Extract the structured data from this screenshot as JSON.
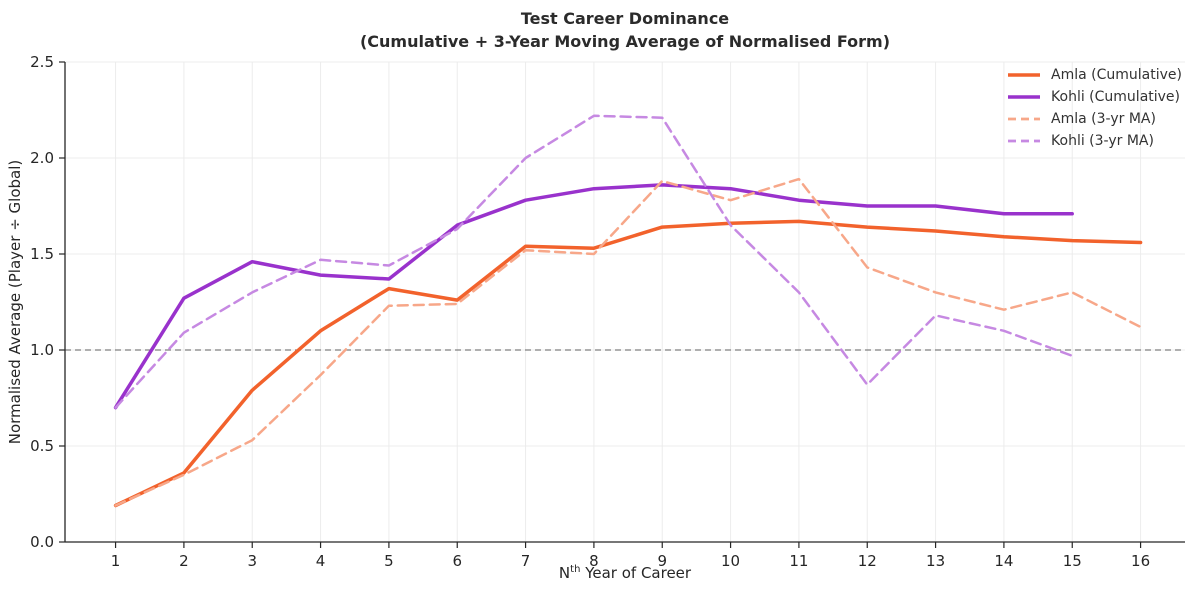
{
  "chart_data": {
    "type": "line",
    "title": "Test Career Dominance",
    "subtitle": "(Cumulative + 3-Year Moving Average of Normalised Form)",
    "xlabel": "Nth Year of Career",
    "xlabel_parts": {
      "prefix": "N",
      "sup": "th",
      "rest": " Year of Career"
    },
    "ylabel": "Normalised Average (Player ÷ Global)",
    "xlim": [
      0.26,
      16.65
    ],
    "ylim": [
      0,
      2.5
    ],
    "x_ticks": [
      1,
      2,
      3,
      4,
      5,
      6,
      7,
      8,
      9,
      10,
      11,
      12,
      13,
      14,
      15,
      16
    ],
    "y_ticks": [
      0.0,
      0.5,
      1.0,
      1.5,
      2.0,
      2.5
    ],
    "grid": true,
    "legend_position": "top-right",
    "baseline": {
      "y": 1.0,
      "style": "dashed",
      "color": "#7f7f7f"
    },
    "x": [
      1,
      2,
      3,
      4,
      5,
      6,
      7,
      8,
      9,
      10,
      11,
      12,
      13,
      14,
      15,
      16
    ],
    "series": [
      {
        "name": "Amla (Cumulative)",
        "color": "#F2622C",
        "style": "solid",
        "width": 3.5,
        "values": [
          0.19,
          0.36,
          0.79,
          1.1,
          1.32,
          1.26,
          1.54,
          1.53,
          1.64,
          1.66,
          1.67,
          1.64,
          1.62,
          1.59,
          1.57,
          1.56
        ]
      },
      {
        "name": "Kohli (Cumulative)",
        "color": "#9932CC",
        "style": "solid",
        "width": 3.5,
        "values": [
          0.7,
          1.27,
          1.46,
          1.39,
          1.37,
          1.65,
          1.78,
          1.84,
          1.86,
          1.84,
          1.78,
          1.75,
          1.75,
          1.71,
          1.71
        ]
      },
      {
        "name": "Amla (3-yr MA)",
        "color": "#F7A789",
        "style": "dashed",
        "width": 2.5,
        "values": [
          0.19,
          0.35,
          0.53,
          0.87,
          1.23,
          1.24,
          1.52,
          1.5,
          1.88,
          1.78,
          1.89,
          1.43,
          1.3,
          1.21,
          1.3,
          1.12
        ]
      },
      {
        "name": "Kohli (3-yr MA)",
        "color": "#C689E2",
        "style": "dashed",
        "width": 2.5,
        "values": [
          0.7,
          1.09,
          1.3,
          1.47,
          1.44,
          1.63,
          2.0,
          2.22,
          2.21,
          1.65,
          1.3,
          0.82,
          1.18,
          1.1,
          0.97
        ]
      }
    ],
    "colors": {
      "background": "#ffffff",
      "grid": "#ececec",
      "spine": "#262626",
      "tick_text": "#262626",
      "title_text": "#2b2b2b",
      "legend_text": "#333333"
    }
  }
}
